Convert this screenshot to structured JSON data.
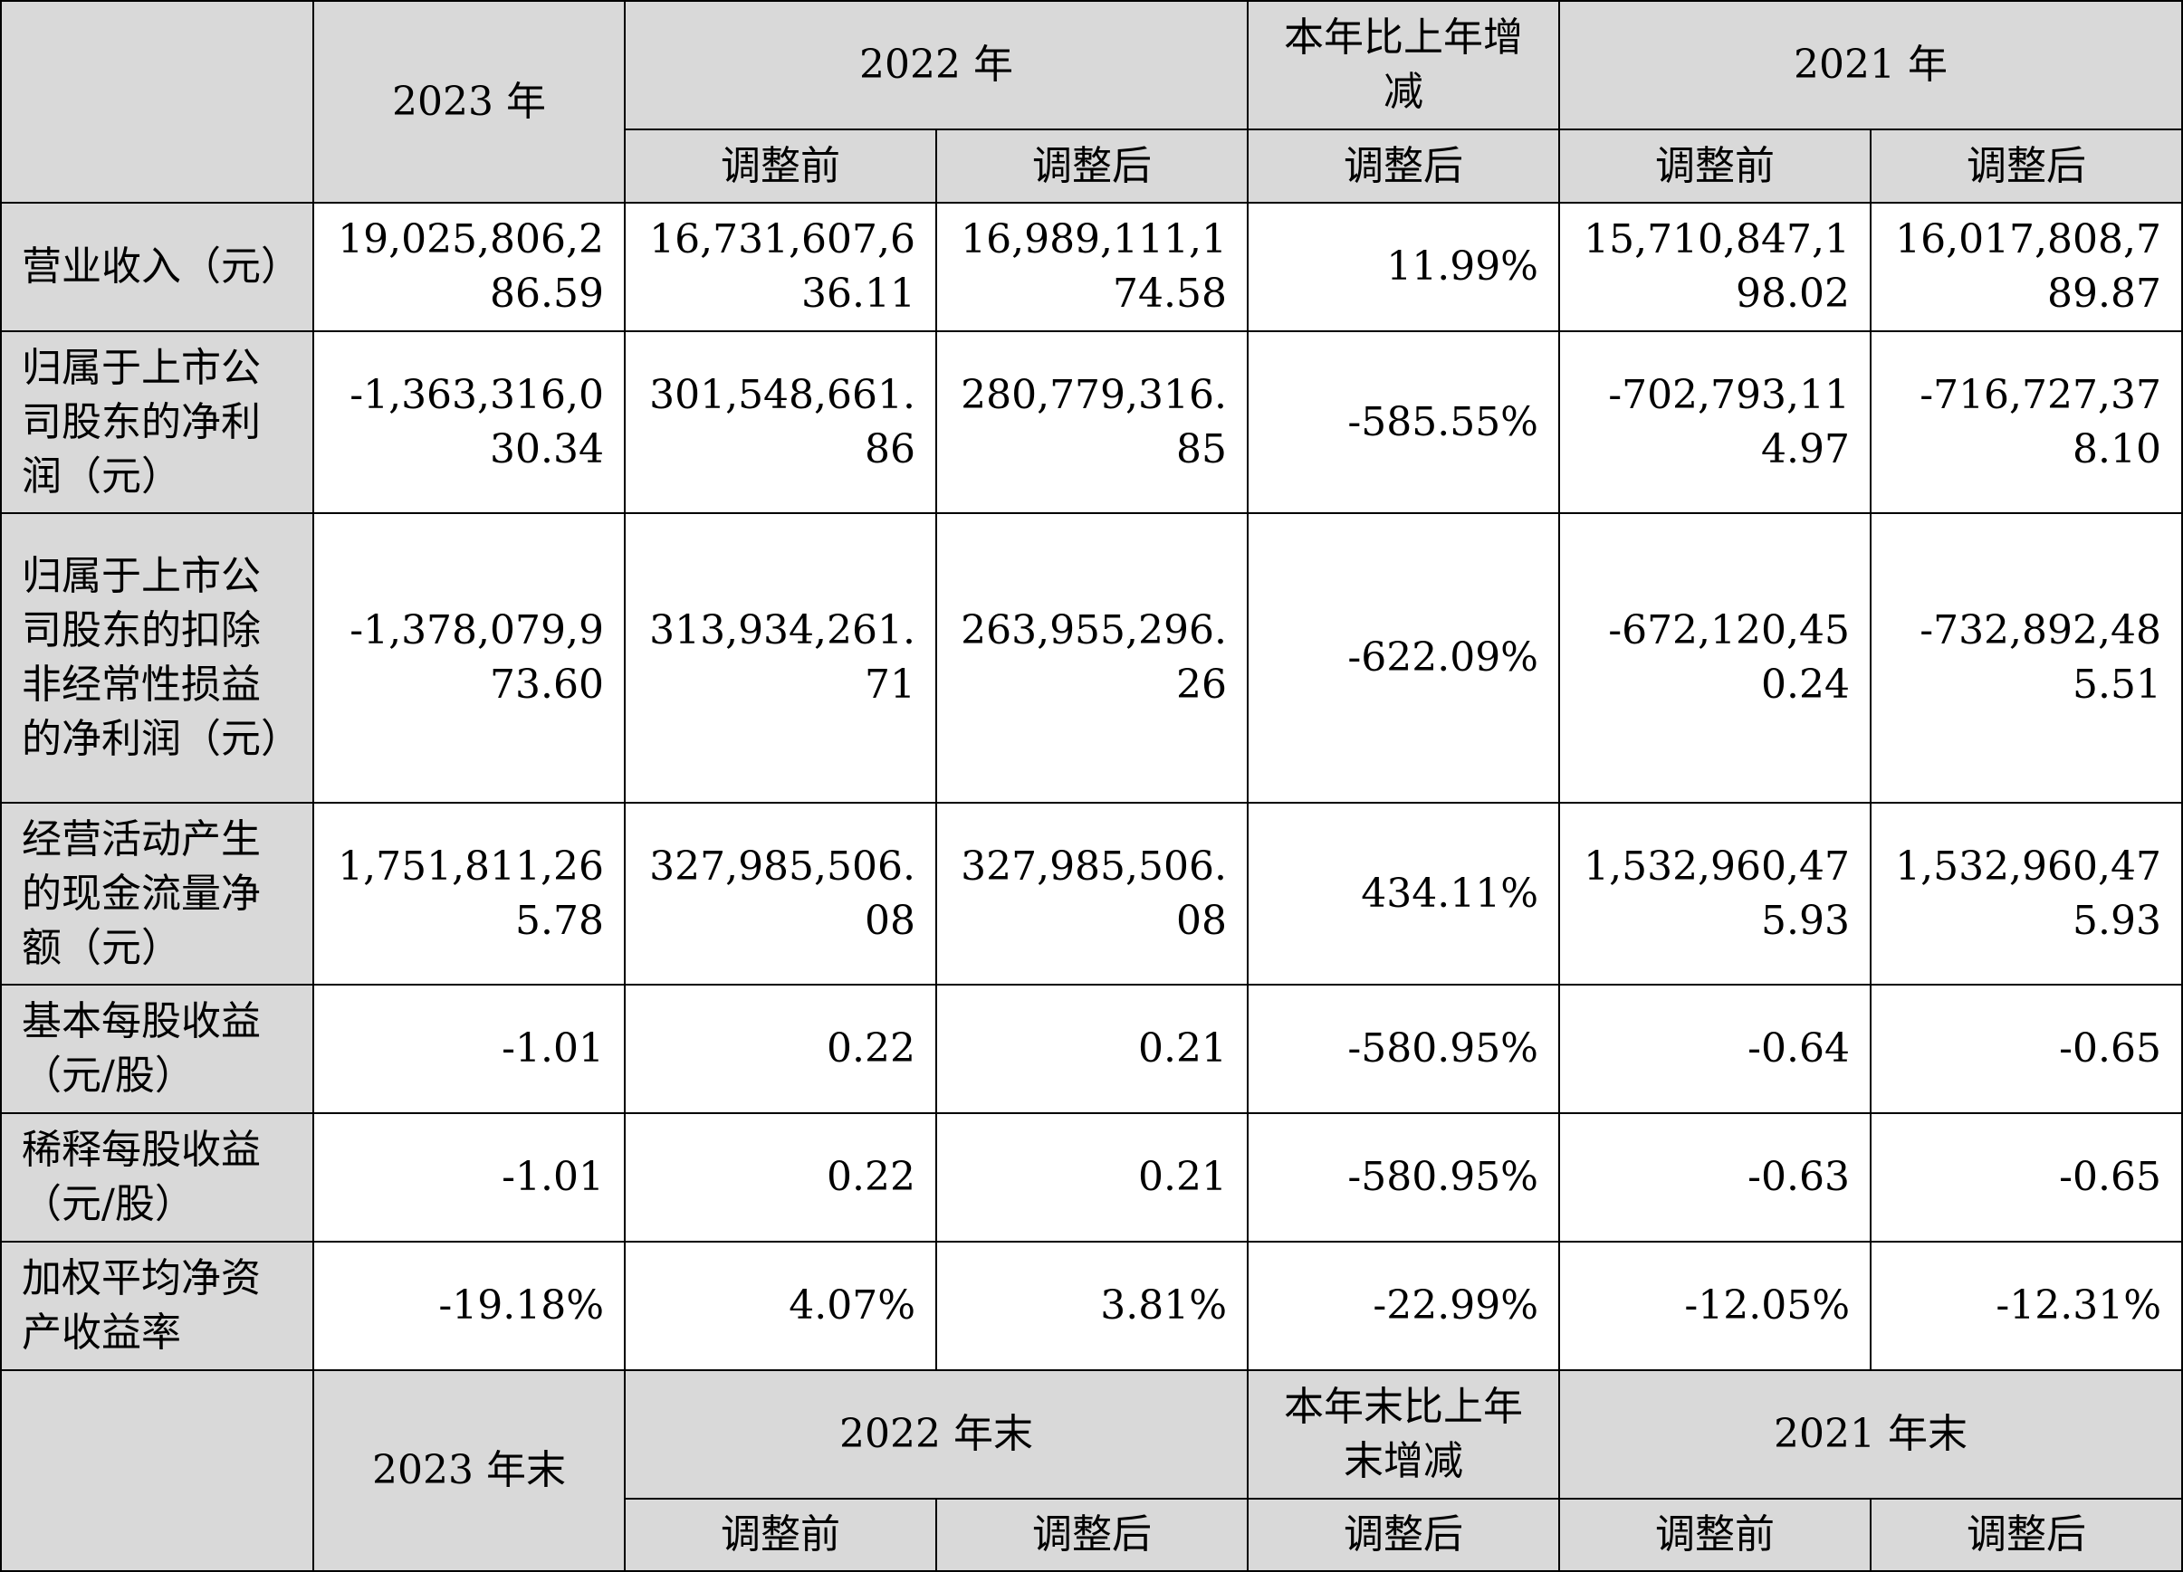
{
  "header_top": {
    "year_2023": "2023 年",
    "year_2022": "2022 年",
    "change": "本年比上年增减",
    "year_2021": "2021 年",
    "before": "调整前",
    "after": "调整后"
  },
  "rows": [
    {
      "label": "营业收入（元）",
      "values": [
        "19,025,806,286.59",
        "16,731,607,636.11",
        "16,989,111,174.58",
        "11.99%",
        "15,710,847,198.02",
        "16,017,808,789.87"
      ]
    },
    {
      "label": "归属于上市公司股东的净利润（元）",
      "values": [
        "-1,363,316,030.34",
        "301,548,661.86",
        "280,779,316.85",
        "-585.55%",
        "-702,793,114.97",
        "-716,727,378.10"
      ]
    },
    {
      "label": "归属于上市公司股东的扣除非经常性损益的净利润（元）",
      "values": [
        "-1,378,079,973.60",
        "313,934,261.71",
        "263,955,296.26",
        "-622.09%",
        "-672,120,450.24",
        "-732,892,485.51"
      ]
    },
    {
      "label": "经营活动产生的现金流量净额（元）",
      "values": [
        "1,751,811,265.78",
        "327,985,506.08",
        "327,985,506.08",
        "434.11%",
        "1,532,960,475.93",
        "1,532,960,475.93"
      ]
    },
    {
      "label": "基本每股收益（元/股）",
      "values": [
        "-1.01",
        "0.22",
        "0.21",
        "-580.95%",
        "-0.64",
        "-0.65"
      ]
    },
    {
      "label": "稀释每股收益（元/股）",
      "values": [
        "-1.01",
        "0.22",
        "0.21",
        "-580.95%",
        "-0.63",
        "-0.65"
      ]
    },
    {
      "label": "加权平均净资产收益率",
      "values": [
        "-19.18%",
        "4.07%",
        "3.81%",
        "-22.99%",
        "-12.05%",
        "-12.31%"
      ]
    }
  ],
  "header_bottom": {
    "year_2023": "2023 年末",
    "year_2022": "2022 年末",
    "change": "本年末比上年末增减",
    "year_2021": "2021 年末",
    "before": "调整前",
    "after": "调整后"
  }
}
